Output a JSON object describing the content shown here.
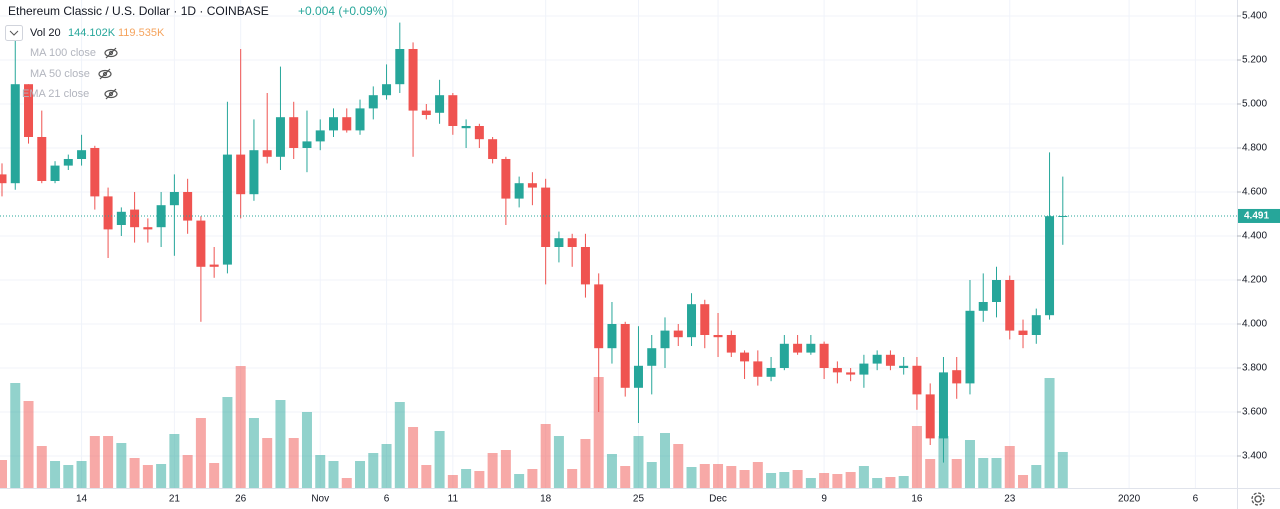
{
  "chart_data": {
    "type": "candlestick",
    "title": "Ethereum Classic / U.S. Dollar · 1D · COINBASE",
    "change": "+0.004 (+0.09%)",
    "legend": [
      "Vol 20",
      "144.102K",
      "119.535K",
      "MA 100 close",
      "MA 50 close",
      "EMA 21 close"
    ],
    "last_price": 4.491,
    "up_color": "#26a69a",
    "down_color": "#ef5350",
    "grid": true,
    "ylim": [
      3.2545,
      5.4727
    ],
    "yticks": [
      {
        "value": 3.4,
        "label": "3.400"
      },
      {
        "value": 3.6,
        "label": "3.600"
      },
      {
        "value": 3.8,
        "label": "3.800"
      },
      {
        "value": 4.0,
        "label": "4.000"
      },
      {
        "value": 4.2,
        "label": "4.200"
      },
      {
        "value": 4.4,
        "label": "4.400"
      },
      {
        "value": 4.6,
        "label": "4.600"
      },
      {
        "value": 4.8,
        "label": "4.800"
      },
      {
        "value": 5.0,
        "label": "5.000"
      },
      {
        "value": 5.2,
        "label": "5.200"
      },
      {
        "value": 5.4,
        "label": "5.400"
      }
    ],
    "volume_ylim": [
      0,
      600000
    ],
    "categories": [
      null,
      null,
      null,
      null,
      null,
      null,
      "14",
      null,
      null,
      null,
      null,
      null,
      null,
      "21",
      null,
      null,
      null,
      null,
      "26",
      null,
      null,
      null,
      null,
      null,
      "Nov",
      null,
      null,
      null,
      null,
      "6",
      null,
      null,
      null,
      null,
      "11",
      null,
      null,
      null,
      null,
      null,
      null,
      "18",
      null,
      null,
      null,
      null,
      null,
      null,
      "25",
      null,
      null,
      null,
      null,
      null,
      "Dec",
      null,
      null,
      null,
      null,
      null,
      null,
      null,
      "9",
      null,
      null,
      null,
      null,
      null,
      null,
      "16",
      null,
      null,
      null,
      null,
      null,
      null,
      "23",
      null,
      null,
      null,
      null,
      null,
      null,
      null,
      null,
      "2020",
      null,
      null,
      null,
      null,
      "6",
      null,
      null
    ],
    "open": [
      4.68,
      4.64,
      5.09,
      4.85,
      4.65,
      4.72,
      4.75,
      4.8,
      4.58,
      4.45,
      4.52,
      4.44,
      4.44,
      4.54,
      4.6,
      4.47,
      4.27,
      4.27,
      4.77,
      4.59,
      4.79,
      4.76,
      4.94,
      4.8,
      4.83,
      4.88,
      4.94,
      4.88,
      4.98,
      5.04,
      5.09,
      5.25,
      4.97,
      4.96,
      5.04,
      4.89,
      4.9,
      4.84,
      4.75,
      4.57,
      4.64,
      4.62,
      4.35,
      4.39,
      4.35,
      4.18,
      3.89,
      4.0,
      3.71,
      3.81,
      3.89,
      3.97,
      3.94,
      4.09,
      3.95,
      3.95,
      3.87,
      3.83,
      3.76,
      3.8,
      3.91,
      3.87,
      3.91,
      3.8,
      3.78,
      3.77,
      3.82,
      3.86,
      3.8,
      3.81,
      3.68,
      3.48,
      3.79,
      3.73,
      4.06,
      4.1,
      4.2,
      3.97,
      3.95,
      4.04,
      4.49,
      null,
      null,
      null,
      null,
      null,
      null,
      null,
      null,
      null,
      null,
      null,
      null
    ],
    "high": [
      4.73,
      5.29,
      5.09,
      4.97,
      4.74,
      4.77,
      4.86,
      4.81,
      4.62,
      4.53,
      4.6,
      4.48,
      4.6,
      4.68,
      4.66,
      4.49,
      4.35,
      5.01,
      5.25,
      4.93,
      5.05,
      5.17,
      5.01,
      4.97,
      4.93,
      4.98,
      4.98,
      5.02,
      5.08,
      5.18,
      5.37,
      5.28,
      5.0,
      5.11,
      5.05,
      4.93,
      4.91,
      4.85,
      4.76,
      4.67,
      4.69,
      4.66,
      4.42,
      4.41,
      4.41,
      4.23,
      4.1,
      4.01,
      3.99,
      3.95,
      4.03,
      4.0,
      4.14,
      4.11,
      4.05,
      3.97,
      3.88,
      3.88,
      3.85,
      3.95,
      3.95,
      3.95,
      3.92,
      3.83,
      3.8,
      3.86,
      3.88,
      3.88,
      3.85,
      3.85,
      3.73,
      3.85,
      3.85,
      4.2,
      4.23,
      4.26,
      4.22,
      4.02,
      4.07,
      4.78,
      4.67,
      null,
      null,
      null,
      null,
      null,
      null,
      null,
      null,
      null,
      null,
      null,
      null
    ],
    "low": [
      4.58,
      4.61,
      4.82,
      4.64,
      4.64,
      4.7,
      4.72,
      4.52,
      4.3,
      4.4,
      4.37,
      4.37,
      4.35,
      4.31,
      4.41,
      4.01,
      4.21,
      4.23,
      4.48,
      4.56,
      4.73,
      4.7,
      4.75,
      4.69,
      4.79,
      4.85,
      4.87,
      4.86,
      4.93,
      5.02,
      5.05,
      4.76,
      4.93,
      4.91,
      4.86,
      4.8,
      4.8,
      4.73,
      4.45,
      4.53,
      4.54,
      4.18,
      4.28,
      4.26,
      4.12,
      3.6,
      3.82,
      3.67,
      3.55,
      3.68,
      3.8,
      3.9,
      3.9,
      3.89,
      3.85,
      3.85,
      3.75,
      3.72,
      3.74,
      3.79,
      3.86,
      3.86,
      3.75,
      3.73,
      3.74,
      3.71,
      3.79,
      3.79,
      3.77,
      3.61,
      3.45,
      3.37,
      3.66,
      3.68,
      4.01,
      4.03,
      3.93,
      3.89,
      3.91,
      4.02,
      4.36,
      null,
      null,
      null,
      null,
      null,
      null,
      null,
      null,
      null,
      null,
      null,
      null
    ],
    "close": [
      4.64,
      5.09,
      4.85,
      4.65,
      4.72,
      4.75,
      4.79,
      4.58,
      4.43,
      4.51,
      4.44,
      4.43,
      4.54,
      4.6,
      4.47,
      4.26,
      4.26,
      4.77,
      4.59,
      4.79,
      4.76,
      4.94,
      4.8,
      4.83,
      4.88,
      4.94,
      4.88,
      4.98,
      5.04,
      5.09,
      5.25,
      4.97,
      4.95,
      5.04,
      4.9,
      4.9,
      4.84,
      4.75,
      4.57,
      4.64,
      4.62,
      4.35,
      4.39,
      4.35,
      4.18,
      3.89,
      4.0,
      3.71,
      3.81,
      3.89,
      3.97,
      3.94,
      4.09,
      3.95,
      3.94,
      3.87,
      3.83,
      3.76,
      3.8,
      3.91,
      3.87,
      3.91,
      3.8,
      3.78,
      3.77,
      3.82,
      3.86,
      3.81,
      3.81,
      3.68,
      3.48,
      3.78,
      3.73,
      4.06,
      4.1,
      4.2,
      3.97,
      3.95,
      4.04,
      4.49,
      4.491,
      null,
      null,
      null,
      null,
      null,
      null,
      null,
      null,
      null,
      null,
      null,
      null
    ],
    "volume": [
      112000,
      420000,
      348000,
      168000,
      108000,
      92000,
      108000,
      208000,
      208000,
      180000,
      120000,
      92000,
      96000,
      216000,
      132000,
      280000,
      100000,
      364000,
      488000,
      280000,
      200000,
      352000,
      200000,
      304000,
      132000,
      108000,
      40000,
      108000,
      140000,
      176000,
      344000,
      244000,
      92000,
      228000,
      52000,
      76000,
      68000,
      140000,
      152000,
      56000,
      76000,
      256000,
      208000,
      76000,
      196000,
      444000,
      136000,
      88000,
      208000,
      104000,
      220000,
      176000,
      84000,
      96000,
      96000,
      88000,
      72000,
      104000,
      60000,
      64000,
      72000,
      40000,
      60000,
      56000,
      64000,
      88000,
      40000,
      44000,
      48000,
      248000,
      116000,
      208000,
      116000,
      192000,
      120000,
      120000,
      168000,
      52000,
      92000,
      440000,
      144102,
      null,
      null,
      null,
      null,
      null,
      null,
      null,
      null,
      null,
      null,
      null,
      null
    ]
  }
}
